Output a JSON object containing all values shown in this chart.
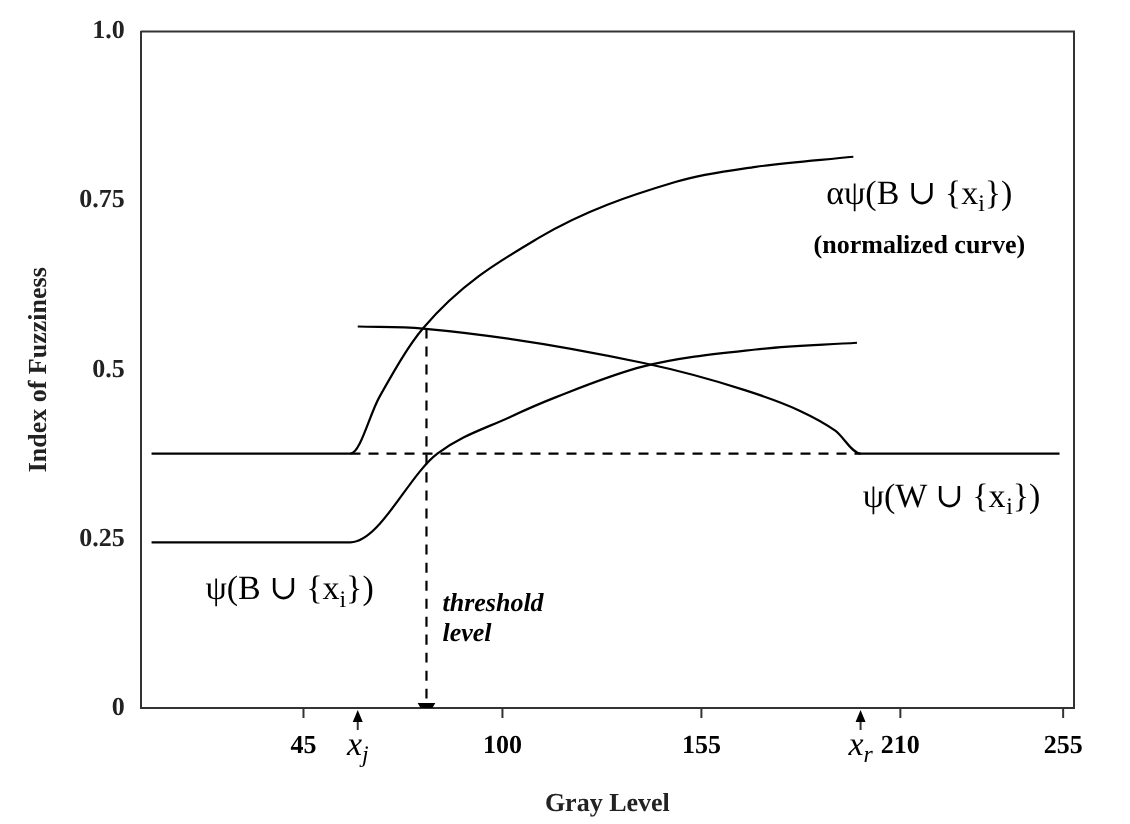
{
  "chart_data": {
    "type": "line",
    "xlabel": "Gray Level",
    "ylabel": "Index of Fuzziness",
    "xlim": [
      0,
      258
    ],
    "xticks": [
      45,
      {
        "value": 60,
        "label": "x$_{j}$"
      },
      100,
      155,
      {
        "value": 199,
        "label": "x$_{r}$"
      },
      210,
      255
    ],
    "ylim": [
      0,
      1
    ],
    "yticks": [
      0,
      0.25,
      0.5,
      0.75,
      {
        "value": 1,
        "label": "1.0"
      }
    ],
    "grid": false,
    "legend": false,
    "series": [
      {
        "name": "αψ(B ∪ {x$_{i}$})",
        "color": "#000000",
        "x": [
          3,
          58,
          66,
          78,
          110,
          148,
          170,
          197
        ],
        "values": [
          0.376,
          0.376,
          0.46,
          0.561,
          0.695,
          0.778,
          0.8,
          0.815
        ]
      },
      {
        "name": "ψ(B ∪ {x$_{i}$})",
        "color": "#000000",
        "x": [
          3,
          58,
          82,
          102,
          115,
          139,
          170,
          198
        ],
        "values": [
          0.245,
          0.245,
          0.376,
          0.43,
          0.46,
          0.505,
          0.53,
          0.54
        ]
      },
      {
        "name": "ψ(W ∪ {x$_{i}$})",
        "color": "#000000",
        "x": [
          60,
          78,
          139,
          167,
          182,
          192,
          199,
          254
        ],
        "values": [
          0.564,
          0.561,
          0.51,
          0.47,
          0.44,
          0.41,
          0.376,
          0.376
        ]
      },
      {
        "color": "#000000",
        "line_style": "dashed",
        "x": [
          58,
          199
        ],
        "values": [
          0.376,
          0.376
        ]
      },
      {
        "color": "#000000",
        "line_style": "dashed",
        "marker": "triangle",
        "x": [
          79,
          79
        ],
        "values": [
          0.561,
          0
        ]
      }
    ],
    "annotations": [
      "(normalized curve)",
      {
        "text": "threshold level",
        "x": 79,
        "y": 0.13
      }
    ]
  }
}
